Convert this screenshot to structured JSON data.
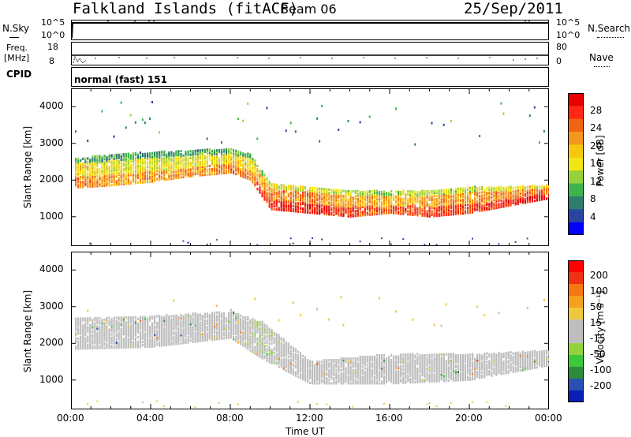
{
  "header": {
    "station": "Falkland Islands (fitACF)",
    "beam": "Beam 06",
    "date": "25/Sep/2011"
  },
  "sidepanels": {
    "nsky_label": "N.Sky",
    "nsky_top": "10^5",
    "nsky_bottom": "10^0",
    "nsearch_label": "N.Search",
    "nsearch_top": "10^5",
    "nsearch_bottom": "10^0",
    "freq_label": "Freq.",
    "freq_unit": "[MHz]",
    "freq_top": "18",
    "freq_bottom": "8",
    "nave_label": "Nave",
    "nave_top": "80",
    "nave_bottom": "0",
    "cpid_label": "CPID",
    "cpid_value": "normal (fast) 151"
  },
  "colorbars": {
    "power": {
      "label": "Power [dB]",
      "ticks": [
        "28",
        "24",
        "20",
        "16",
        "12",
        "8",
        "4"
      ],
      "colors": [
        "#0000ff",
        "#2846a0",
        "#2f7d6e",
        "#3cb44b",
        "#96d23c",
        "#f0e614",
        "#f5c80f",
        "#f5961e",
        "#f06414",
        "#ff2814",
        "#e60000"
      ]
    },
    "velocity": {
      "label": "Velocity [m s⁻¹]",
      "ticks": [
        "200",
        "100",
        "50",
        "15",
        "-15",
        "-50",
        "-100",
        "-200"
      ],
      "colors": [
        "#0a1eb4",
        "#2850b4",
        "#2d8c3c",
        "#3cc83c",
        "#96d23c",
        "#bebebe",
        "#bebebe",
        "#f0c83c",
        "#f5a01e",
        "#f57814",
        "#f03214",
        "#ff0000"
      ]
    }
  },
  "axes": {
    "ylabel": "Slant Range [km]",
    "xlabel": "Time UT",
    "yticks": [
      "1000",
      "2000",
      "3000",
      "4000"
    ],
    "xticks": [
      "00:00",
      "04:00",
      "08:00",
      "12:00",
      "16:00",
      "20:00",
      "00:00"
    ]
  },
  "chart_data": [
    {
      "type": "heatmap",
      "title": "",
      "quantity": "Power [dB]",
      "xlabel": "",
      "ylabel": "Slant Range [km]",
      "xlim": [
        "00:00",
        "24:00"
      ],
      "ylim": [
        200,
        4500
      ],
      "clim": [
        0,
        32
      ],
      "main_echo_band": [
        {
          "t": 0.5,
          "r_low": 1800,
          "r_high": 2600,
          "p": 20
        },
        {
          "t": 2,
          "r_low": 1850,
          "r_high": 2700,
          "p": 18
        },
        {
          "t": 4,
          "r_low": 1950,
          "r_high": 2750,
          "p": 18
        },
        {
          "t": 6,
          "r_low": 2100,
          "r_high": 2800,
          "p": 18
        },
        {
          "t": 8,
          "r_low": 2200,
          "r_high": 2850,
          "p": 20
        },
        {
          "t": 9,
          "r_low": 2000,
          "r_high": 2700,
          "p": 20
        },
        {
          "t": 10,
          "r_low": 1200,
          "r_high": 1900,
          "p": 26
        },
        {
          "t": 12,
          "r_low": 1100,
          "r_high": 1800,
          "p": 26
        },
        {
          "t": 14,
          "r_low": 1000,
          "r_high": 1700,
          "p": 24
        },
        {
          "t": 16,
          "r_low": 1100,
          "r_high": 1700,
          "p": 22
        },
        {
          "t": 18,
          "r_low": 1000,
          "r_high": 1700,
          "p": 24
        },
        {
          "t": 20,
          "r_low": 1100,
          "r_high": 1800,
          "p": 24
        },
        {
          "t": 22,
          "r_low": 1300,
          "r_high": 1800,
          "p": 26
        },
        {
          "t": 24,
          "r_low": 1500,
          "r_high": 1850,
          "p": 28
        }
      ]
    },
    {
      "type": "heatmap",
      "title": "",
      "quantity": "Velocity [m s⁻¹]",
      "xlabel": "Time UT",
      "ylabel": "Slant Range [km]",
      "xlim": [
        "00:00",
        "24:00"
      ],
      "ylim": [
        200,
        4500
      ],
      "clim": [
        -250,
        250
      ],
      "main_echo_band": [
        {
          "t": 0.5,
          "r_low": 1850,
          "r_high": 2700,
          "v": 0
        },
        {
          "t": 4,
          "r_low": 1900,
          "r_high": 2750,
          "v": 0
        },
        {
          "t": 8,
          "r_low": 2150,
          "r_high": 2850,
          "v": 0
        },
        {
          "t": 9.5,
          "r_low": 1600,
          "r_high": 2600,
          "v": 30
        },
        {
          "t": 12,
          "r_low": 900,
          "r_high": 1500,
          "v": 0
        },
        {
          "t": 16,
          "r_low": 900,
          "r_high": 1700,
          "v": 0
        },
        {
          "t": 20,
          "r_low": 1000,
          "r_high": 1700,
          "v": 0
        },
        {
          "t": 24,
          "r_low": 1400,
          "r_high": 1800,
          "v": -20
        }
      ]
    }
  ]
}
